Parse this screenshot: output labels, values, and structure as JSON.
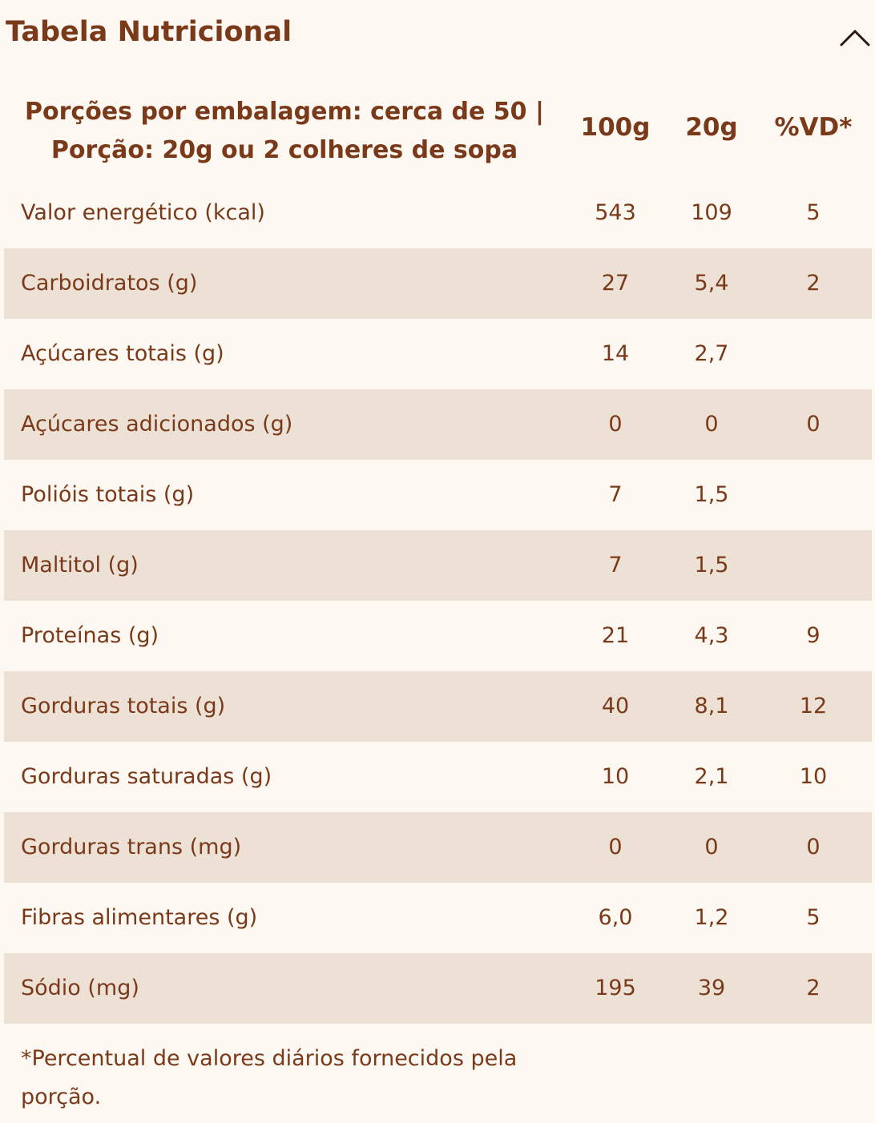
{
  "header": {
    "title": "Tabela Nutricional",
    "toggle_icon": "chevron-up-icon"
  },
  "table": {
    "portion_line1": "Porções por embalagem: cerca de 50 |",
    "portion_line2": "Porção: 20g ou 2 colheres de sopa",
    "columns": [
      "100g",
      "20g",
      "%VD*"
    ],
    "rows": [
      {
        "name": "Valor energético (kcal)",
        "v100": "543",
        "v20": "109",
        "vd": "5"
      },
      {
        "name": "Carboidratos (g)",
        "v100": "27",
        "v20": "5,4",
        "vd": "2"
      },
      {
        "name": "Açúcares totais (g)",
        "v100": "14",
        "v20": "2,7",
        "vd": ""
      },
      {
        "name": "Açúcares adicionados (g)",
        "v100": "0",
        "v20": "0",
        "vd": "0"
      },
      {
        "name": "Polióis totais (g)",
        "v100": "7",
        "v20": "1,5",
        "vd": ""
      },
      {
        "name": "Maltitol (g)",
        "v100": "7",
        "v20": "1,5",
        "vd": ""
      },
      {
        "name": "Proteínas (g)",
        "v100": "21",
        "v20": "4,3",
        "vd": "9"
      },
      {
        "name": "Gorduras totais (g)",
        "v100": "40",
        "v20": "8,1",
        "vd": "12"
      },
      {
        "name": "Gorduras saturadas (g)",
        "v100": "10",
        "v20": "2,1",
        "vd": "10"
      },
      {
        "name": "Gorduras trans (mg)",
        "v100": "0",
        "v20": "0",
        "vd": "0"
      },
      {
        "name": "Fibras alimentares (g)",
        "v100": "6,0",
        "v20": "1,2",
        "vd": "5"
      },
      {
        "name": "Sódio (mg)",
        "v100": "195",
        "v20": "39",
        "vd": "2"
      }
    ]
  },
  "footnote": "*Percentual de valores diários fornecidos pela porção.",
  "colors": {
    "text": "#7a3a1a",
    "background": "#fdf8f2",
    "row_alt": "#ede1d6"
  }
}
